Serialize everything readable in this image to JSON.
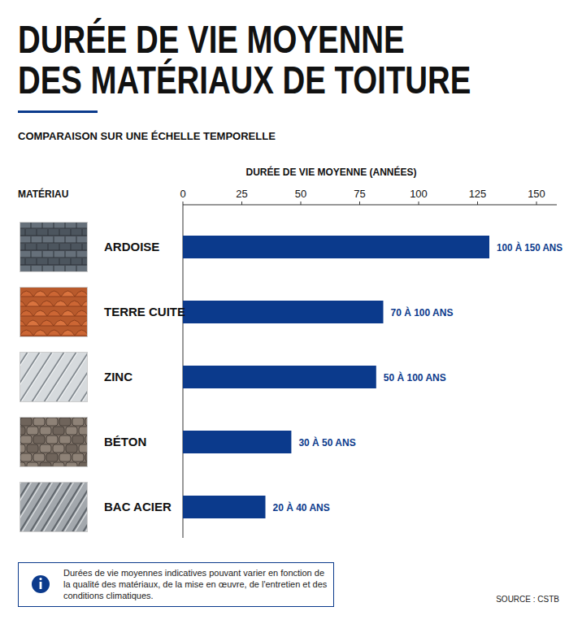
{
  "chart_data": {
    "type": "bar",
    "orientation": "horizontal",
    "title": "DURÉE DE VIE MOYENNE DES MATÉRIAUX DE TOITURE",
    "subtitle": "COMPARAISON SUR UNE ÉCHELLE TEMPORELLE",
    "category_label": "MATÉRIAU",
    "x_label": "DURÉE DE VIE MOYENNE (ANNÉES)",
    "categories": [
      "ARDOISE",
      "TERRE CUITE",
      "ZINC",
      "BÉTON",
      "BAC ACIER"
    ],
    "values": [
      130,
      85,
      82,
      46,
      35
    ],
    "annotations": [
      "100 À 150 ANS",
      "70 À 100 ANS",
      "50 À 100 ANS",
      "30 À 50 ANS",
      "20 À 40 ANS"
    ],
    "color": "#0b3a8c",
    "xlim": [
      0,
      150
    ],
    "xticks": [
      0,
      25,
      50,
      75,
      100,
      125,
      150
    ],
    "grid": false,
    "note": "Durées de vie moyennes indicatives pouvant varier en fonction de la qualité des matériaux, de la mise en œuvre, de l'entretien et des conditions climatiques.",
    "source": "SOURCE : CSTB"
  }
}
